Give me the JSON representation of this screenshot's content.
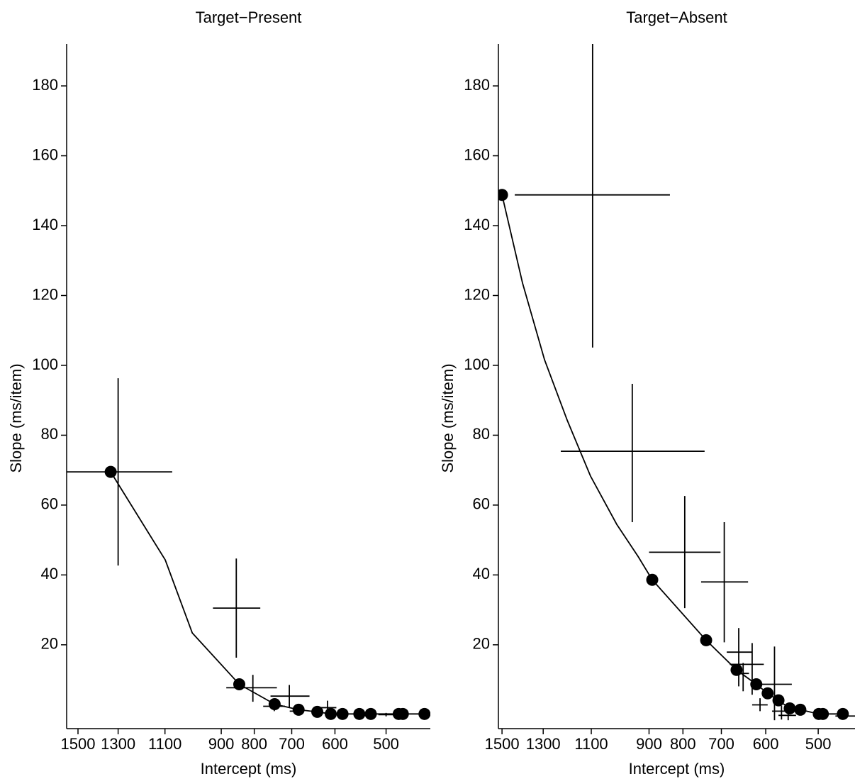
{
  "chart_data": [
    {
      "type": "scatter",
      "title": "Target−Present",
      "x_label": "Intercept (ms)",
      "y_label": "Slope (ms/item)",
      "xscale": "log",
      "xlim": [
        1562,
        427
      ],
      "ylim": [
        -4,
        192
      ],
      "xticks": [
        1500,
        1300,
        1100,
        900,
        800,
        700,
        600,
        500
      ],
      "yticks": [
        20,
        40,
        60,
        80,
        100,
        120,
        140,
        160,
        180
      ],
      "color": "#000000",
      "points": {
        "x": [
          1335,
          844,
          744,
          683,
          639,
          609,
          584,
          550,
          528,
          478,
          471,
          436
        ],
        "y": [
          69.5,
          8.7,
          3.0,
          1.4,
          0.8,
          0.2,
          0.2,
          0.2,
          0.2,
          0.2,
          0.2,
          0.2
        ]
      },
      "fit": {
        "x": [
          1335,
          1099,
          998,
          844,
          744,
          683,
          639,
          609,
          584,
          550,
          528,
          478,
          436
        ],
        "y": [
          69.5,
          44.3,
          23.4,
          8.7,
          3.0,
          1.4,
          0.8,
          0.2,
          0.2,
          0.2,
          0.2,
          0.2,
          0.2
        ]
      },
      "errors": {
        "x": [
          1300,
          853,
          804,
          706,
          745,
          689,
          616,
          500
        ],
        "y": [
          69.5,
          30.5,
          7.7,
          5.3,
          2.4,
          1.0,
          2.0,
          0.0
        ],
        "x_lo": [
          1600,
          927,
          884,
          755,
          775,
          705,
          635,
          514
        ],
        "x_hi": [
          1072,
          783,
          738,
          657,
          717,
          672,
          597,
          480
        ],
        "y_lo": [
          42.7,
          16.3,
          3.7,
          2.0,
          1.0,
          0.0,
          -0.4,
          -0.5
        ],
        "y_hi": [
          96.3,
          44.7,
          11.4,
          8.5,
          4.0,
          2.0,
          4.0,
          0.5
        ]
      }
    },
    {
      "type": "scatter",
      "title": "Target−Absent",
      "x_label": "Intercept (ms)",
      "y_label": "Slope (ms/item)",
      "xscale": "log",
      "xlim": [
        1519,
        440
      ],
      "ylim": [
        -4,
        192
      ],
      "xticks": [
        1500,
        1300,
        1100,
        900,
        800,
        700,
        600,
        500
      ],
      "yticks": [
        20,
        40,
        60,
        80,
        100,
        120,
        140,
        160,
        180
      ],
      "color": "#000000",
      "points": {
        "x": [
          1500,
          890,
          738,
          664,
          620,
          596,
          574,
          552,
          532,
          499,
          492,
          459
        ],
        "y": [
          148.8,
          38.6,
          21.3,
          12.8,
          8.7,
          6.1,
          4.1,
          1.8,
          1.4,
          0.2,
          0.2,
          0.2
        ]
      },
      "fit": {
        "x": [
          1500,
          1397,
          1294,
          1196,
          1103,
          1007,
          935,
          890,
          738,
          664,
          620,
          596,
          574,
          552,
          532,
          499,
          492,
          459
        ],
        "y": [
          148.8,
          123.6,
          101.6,
          84.3,
          68.3,
          54.5,
          45.3,
          38.6,
          21.3,
          12.8,
          8.7,
          6.1,
          4.1,
          1.8,
          1.4,
          0.2,
          0.2,
          0.2
        ]
      },
      "errors": {
        "x": [
          1095,
          954,
          795,
          693,
          659,
          629,
          649,
          582,
          612,
          568,
          555,
          450
        ],
        "y": [
          148.8,
          75.4,
          46.5,
          38.0,
          17.9,
          14.4,
          11.8,
          8.7,
          2.8,
          1.0,
          -0.2,
          -0.4
        ],
        "x_lo": [
          1435,
          1223,
          900,
          751,
          687,
          680,
          663,
          620,
          629,
          587,
          574,
          471
        ],
        "x_hi": [
          837,
          742,
          702,
          638,
          629,
          604,
          636,
          548,
          596,
          547,
          540,
          435
        ],
        "y_lo": [
          105.1,
          55.1,
          30.5,
          20.7,
          8.1,
          5.7,
          6.7,
          -1.6,
          1.0,
          -1.4,
          -1.6,
          -0.4
        ],
        "y_hi": [
          195,
          94.7,
          62.6,
          55.1,
          24.8,
          20.5,
          14.8,
          19.5,
          4.7,
          2.6,
          1.4,
          -0.4
        ]
      }
    }
  ]
}
